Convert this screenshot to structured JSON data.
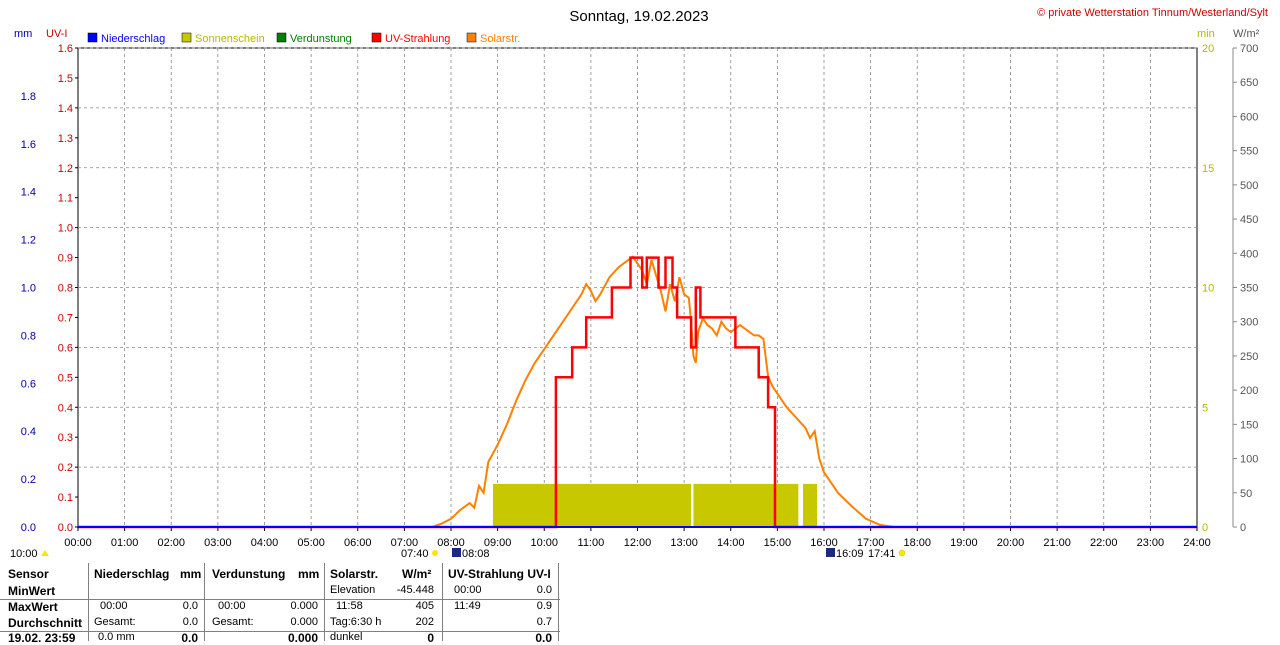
{
  "header": {
    "title": "Sonntag, 19.02.2023",
    "credit": "© private Wetterstation Tinnum/Westerland/Sylt"
  },
  "axes": {
    "left_outer": {
      "label": "mm",
      "ticks": [
        "0.0",
        "0.2",
        "0.4",
        "0.6",
        "0.8",
        "1.0",
        "1.2",
        "1.4",
        "1.6",
        "1.8"
      ],
      "max": 2.0,
      "color": "#0000aa"
    },
    "left_inner": {
      "label": "UV-I",
      "ticks": [
        "0.0",
        "0.1",
        "0.2",
        "0.3",
        "0.4",
        "0.5",
        "0.6",
        "0.7",
        "0.8",
        "0.9",
        "1.0",
        "1.1",
        "1.2",
        "1.3",
        "1.4",
        "1.5",
        "1.6"
      ],
      "max": 1.6,
      "color": "#cc0000"
    },
    "right_inner": {
      "label": "min",
      "ticks": [
        "0",
        "5",
        "10",
        "15",
        "20"
      ],
      "max": 20,
      "color": "#b8b800"
    },
    "right_outer": {
      "label": "W/m²",
      "ticks": [
        "0",
        "50",
        "100",
        "150",
        "200",
        "250",
        "300",
        "350",
        "400",
        "450",
        "500",
        "550",
        "600",
        "650",
        "700"
      ],
      "max": 700,
      "color": "#555555"
    },
    "x_ticks": [
      "00:00",
      "01:00",
      "02:00",
      "03:00",
      "04:00",
      "05:00",
      "06:00",
      "07:00",
      "08:00",
      "09:00",
      "10:00",
      "11:00",
      "12:00",
      "13:00",
      "14:00",
      "15:00",
      "16:00",
      "17:00",
      "18:00",
      "19:00",
      "20:00",
      "21:00",
      "22:00",
      "23:00",
      "24:00"
    ]
  },
  "legend": [
    {
      "label": "Niederschlag",
      "color": "#0000ff"
    },
    {
      "label": "Sonnenschein",
      "color": "#c8c800"
    },
    {
      "label": "Verdunstung",
      "color": "#008000"
    },
    {
      "label": "UV-Strahlung",
      "color": "#ff0000"
    },
    {
      "label": "Solarstr.",
      "color": "#ff8000"
    }
  ],
  "markers": {
    "left_time": "10:00",
    "sunrise": "07:40",
    "sunrise_civil": "08:08",
    "sunset_civil": "16:09",
    "sunset": "17:41"
  },
  "chart_data": {
    "type": "line",
    "x_unit": "hours",
    "solar": {
      "name": "Solarstr.",
      "x": [
        7.6,
        7.8,
        8.0,
        8.2,
        8.4,
        8.5,
        8.6,
        8.7,
        8.8,
        9.0,
        9.2,
        9.4,
        9.6,
        9.8,
        10.0,
        10.2,
        10.4,
        10.6,
        10.8,
        10.9,
        11.0,
        11.1,
        11.2,
        11.4,
        11.6,
        11.8,
        11.9,
        12.0,
        12.1,
        12.2,
        12.3,
        12.5,
        12.6,
        12.7,
        12.8,
        12.9,
        13.0,
        13.1,
        13.15,
        13.2,
        13.25,
        13.3,
        13.4,
        13.5,
        13.6,
        13.7,
        13.8,
        13.9,
        14.0,
        14.2,
        14.4,
        14.5,
        14.6,
        14.7,
        14.8,
        14.9,
        15.0,
        15.1,
        15.2,
        15.4,
        15.6,
        15.7,
        15.8,
        15.9,
        16.0,
        16.3,
        16.6,
        16.9,
        17.2,
        17.5
      ],
      "y": [
        0,
        5,
        12,
        25,
        35,
        28,
        60,
        50,
        95,
        120,
        150,
        185,
        215,
        240,
        260,
        280,
        300,
        320,
        340,
        355,
        345,
        330,
        340,
        365,
        380,
        390,
        395,
        385,
        375,
        355,
        390,
        345,
        315,
        355,
        330,
        365,
        340,
        335,
        300,
        250,
        240,
        285,
        305,
        295,
        290,
        280,
        300,
        290,
        285,
        295,
        285,
        280,
        280,
        275,
        220,
        205,
        195,
        185,
        175,
        160,
        145,
        130,
        140,
        100,
        80,
        50,
        30,
        12,
        3,
        0
      ]
    },
    "uv": {
      "name": "UV-Strahlung",
      "x": [
        0,
        10.25,
        10.25,
        10.6,
        10.6,
        10.9,
        10.9,
        11.45,
        11.45,
        11.85,
        11.85,
        12.1,
        12.1,
        12.2,
        12.2,
        12.45,
        12.45,
        12.6,
        12.6,
        12.75,
        12.75,
        12.85,
        12.85,
        13.15,
        13.15,
        13.25,
        13.25,
        13.35,
        13.35,
        13.5,
        13.5,
        13.6,
        13.6,
        14.1,
        14.1,
        14.6,
        14.6,
        14.8,
        14.8,
        14.95,
        14.95,
        24
      ],
      "y": [
        0,
        0,
        0.5,
        0.5,
        0.6,
        0.6,
        0.7,
        0.7,
        0.8,
        0.8,
        0.9,
        0.9,
        0.8,
        0.8,
        0.9,
        0.9,
        0.8,
        0.8,
        0.9,
        0.9,
        0.8,
        0.8,
        0.7,
        0.7,
        0.6,
        0.6,
        0.8,
        0.8,
        0.7,
        0.7,
        0.7,
        0.7,
        0.7,
        0.7,
        0.6,
        0.6,
        0.5,
        0.5,
        0.4,
        0.4,
        0,
        0
      ]
    },
    "sunshine": {
      "name": "Sonnenschein",
      "x": [
        8.9,
        9.0,
        9.5,
        10.0,
        10.5,
        11.0,
        11.5,
        12.0,
        12.5,
        13.0,
        13.2,
        13.5,
        14.0,
        14.5,
        15.0,
        15.45,
        15.55,
        15.75
      ],
      "y": [
        1.8,
        1.8,
        1.8,
        1.8,
        1.8,
        1.8,
        1.8,
        1.8,
        1.8,
        1.8,
        1.8,
        1.8,
        1.8,
        1.8,
        1.8,
        1.8,
        1.8,
        1.8
      ],
      "segments": [
        [
          8.9,
          13.15
        ],
        [
          13.2,
          15.45
        ],
        [
          15.55,
          15.85
        ]
      ]
    },
    "precipitation_mm": 0.0,
    "evaporation_mm": 0.0
  },
  "stats": {
    "headers": {
      "sensor": "Sensor",
      "rain": "Niederschlag",
      "rain_unit": "mm",
      "evap": "Verdunstung",
      "evap_unit": "mm",
      "solar": "Solarstr.",
      "solar_unit": "W/m²",
      "uv": "UV-Strahlung UV-I"
    },
    "rows": {
      "min": {
        "label": "MinWert",
        "solar_t": "Elevation",
        "solar_v": "-45.448",
        "uv_t": "00:00",
        "uv_v": "0.0"
      },
      "max": {
        "label": "MaxWert",
        "rain_t": "00:00",
        "rain_v": "0.0",
        "evap_t": "00:00",
        "evap_v": "0.000",
        "solar_t": "11:58",
        "solar_v": "405",
        "uv_t": "11:49",
        "uv_v": "0.9"
      },
      "avg": {
        "label": "Durchschnitt",
        "rain_t": "Gesamt:",
        "rain_v": "0.0",
        "evap_t": "Gesamt:",
        "evap_v": "0.000",
        "solar_t": "Tag:6:30 h",
        "solar_v": "202",
        "uv_v": "0.7"
      },
      "last": {
        "label": "19.02. 23:59",
        "rain_t": "0.0 mm",
        "rain_v": "0.0",
        "evap_v": "0.000",
        "solar_t": "dunkel",
        "solar_v": "0",
        "uv_v": "0.0"
      }
    }
  }
}
